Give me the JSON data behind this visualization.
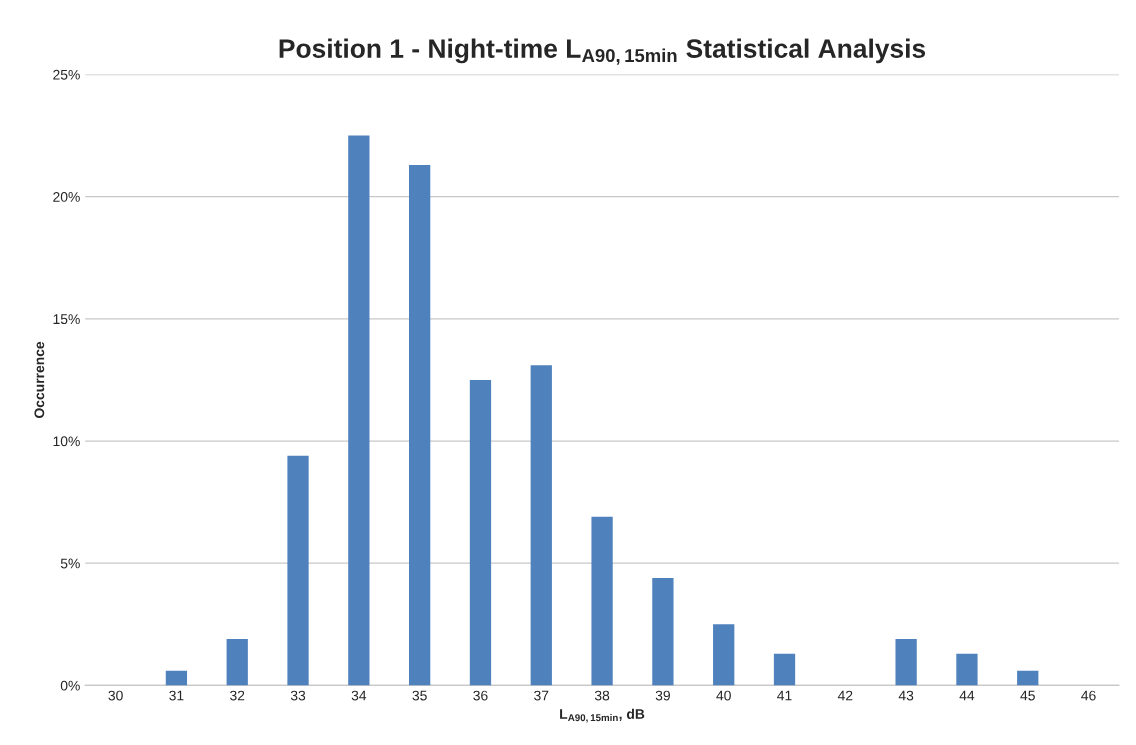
{
  "chart_data": {
    "type": "bar",
    "title": "Position 1 - Night-time L$_{A90,15min}$ Statistical Analysis",
    "xlabel": "L$_{A90,15min}$, dB",
    "ylabel": "Occurrence",
    "categories": [
      "30",
      "31",
      "32",
      "33",
      "34",
      "35",
      "36",
      "37",
      "38",
      "39",
      "40",
      "41",
      "42",
      "43",
      "44",
      "45",
      "46"
    ],
    "values": [
      0,
      0.6,
      1.9,
      9.4,
      22.5,
      21.3,
      12.5,
      13.1,
      6.9,
      4.4,
      2.5,
      1.3,
      0,
      1.9,
      1.3,
      0.6,
      0
    ],
    "color": "#4f81bd",
    "ylim": [
      0,
      25
    ],
    "yticks": [
      {
        "value": 0,
        "label": "0%"
      },
      {
        "value": 5,
        "label": "5%"
      },
      {
        "value": 10,
        "label": "10%"
      },
      {
        "value": 15,
        "label": "15%"
      },
      {
        "value": 20,
        "label": "20%"
      },
      {
        "value": 25,
        "label": "25%"
      }
    ],
    "grid": "y",
    "legend": false
  }
}
